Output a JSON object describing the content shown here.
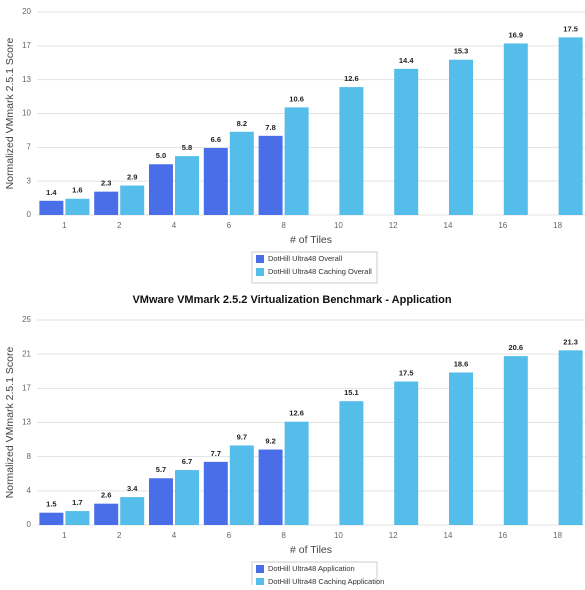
{
  "chart_data": [
    {
      "type": "bar",
      "y_label": "Normalized VMmark 2.5.1 Score",
      "x_label": "# of Tiles",
      "categories": [
        "1",
        "2",
        "4",
        "6",
        "8",
        "10",
        "12",
        "14",
        "16",
        "18"
      ],
      "series": [
        {
          "name": "DotHill Ultra48 Overall",
          "color": "#4a6ee8",
          "values": [
            1.4,
            2.3,
            5.0,
            6.6,
            7.8,
            null,
            null,
            null,
            null,
            null
          ],
          "value_labels": [
            "1.4",
            "2.3",
            "5.0",
            "6.6",
            "7.8",
            null,
            null,
            null,
            null,
            null
          ]
        },
        {
          "name": "DotHill Ultra48 Caching Overall",
          "color": "#55bdea",
          "values": [
            1.6,
            2.9,
            5.8,
            8.2,
            10.6,
            12.6,
            14.4,
            15.3,
            16.9,
            17.5
          ]
        }
      ],
      "ylim": [
        0,
        20
      ],
      "yticks": [
        0,
        {
          "value": 3.333,
          "label": "3"
        },
        {
          "value": 6.667,
          "label": "7"
        },
        10,
        {
          "value": 13.333,
          "label": "13"
        },
        {
          "value": 16.667,
          "label": "17"
        },
        20
      ],
      "grid": true
    },
    {
      "type": "bar",
      "title": "VMware VMmark 2.5.2 Virtualization Benchmark - Application",
      "y_label": "Normalized VMmark 2.5.1 Score",
      "x_label": "# of Tiles",
      "categories": [
        "1",
        "2",
        "4",
        "6",
        "8",
        "10",
        "12",
        "14",
        "16",
        "18"
      ],
      "series": [
        {
          "name": "DotHill Ultra48 Application",
          "color": "#4a6ee8",
          "values": [
            1.5,
            2.6,
            5.7,
            7.7,
            9.2,
            null,
            null,
            null,
            null,
            null
          ]
        },
        {
          "name": "DotHill Ultra48 Caching Application",
          "color": "#55bdea",
          "values": [
            1.7,
            3.4,
            6.7,
            9.7,
            12.6,
            15.1,
            17.5,
            18.6,
            20.6,
            21.3
          ]
        }
      ],
      "ylim": [
        0,
        25
      ],
      "yticks": [
        0,
        {
          "value": 4.167,
          "label": "4"
        },
        {
          "value": 8.333,
          "label": "8"
        },
        {
          "value": 12.5,
          "label": "13"
        },
        {
          "value": 16.667,
          "label": "17"
        },
        {
          "value": 20.833,
          "label": "21"
        },
        25
      ],
      "grid": true
    }
  ]
}
